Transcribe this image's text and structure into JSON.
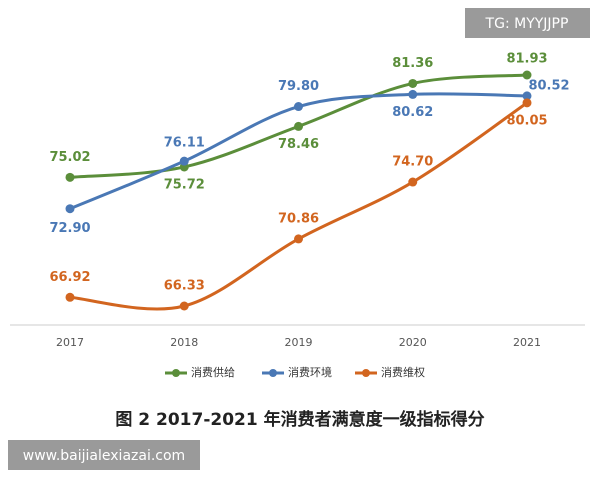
{
  "chart_data": {
    "type": "line",
    "title": "图 2 2017-2021 年消费者满意度一级指标得分",
    "watermarks": [
      "TG: MYYJJPP",
      "www.baijialexiazai.com"
    ],
    "categories": [
      "2017",
      "2018",
      "2019",
      "2020",
      "2021"
    ],
    "series": [
      {
        "name": "消费供给",
        "color": "#5b8e3a",
        "values": [
          75.02,
          75.72,
          78.46,
          81.36,
          81.93
        ],
        "value_labels": [
          "75.02",
          "75.72",
          "78.46",
          "81.36",
          "81.93"
        ]
      },
      {
        "name": "消费环境",
        "color": "#4a78b5",
        "values": [
          72.9,
          76.11,
          79.8,
          80.62,
          80.52
        ],
        "value_labels": [
          "72.90",
          "76.11",
          "79.80",
          "80.62",
          "80.52"
        ]
      },
      {
        "name": "消费维权",
        "color": "#d2651f",
        "values": [
          66.92,
          66.33,
          70.86,
          74.7,
          80.05
        ],
        "value_labels": [
          "66.92",
          "66.33",
          "70.86",
          "74.70",
          "80.05"
        ]
      }
    ],
    "legend": "bottom"
  }
}
